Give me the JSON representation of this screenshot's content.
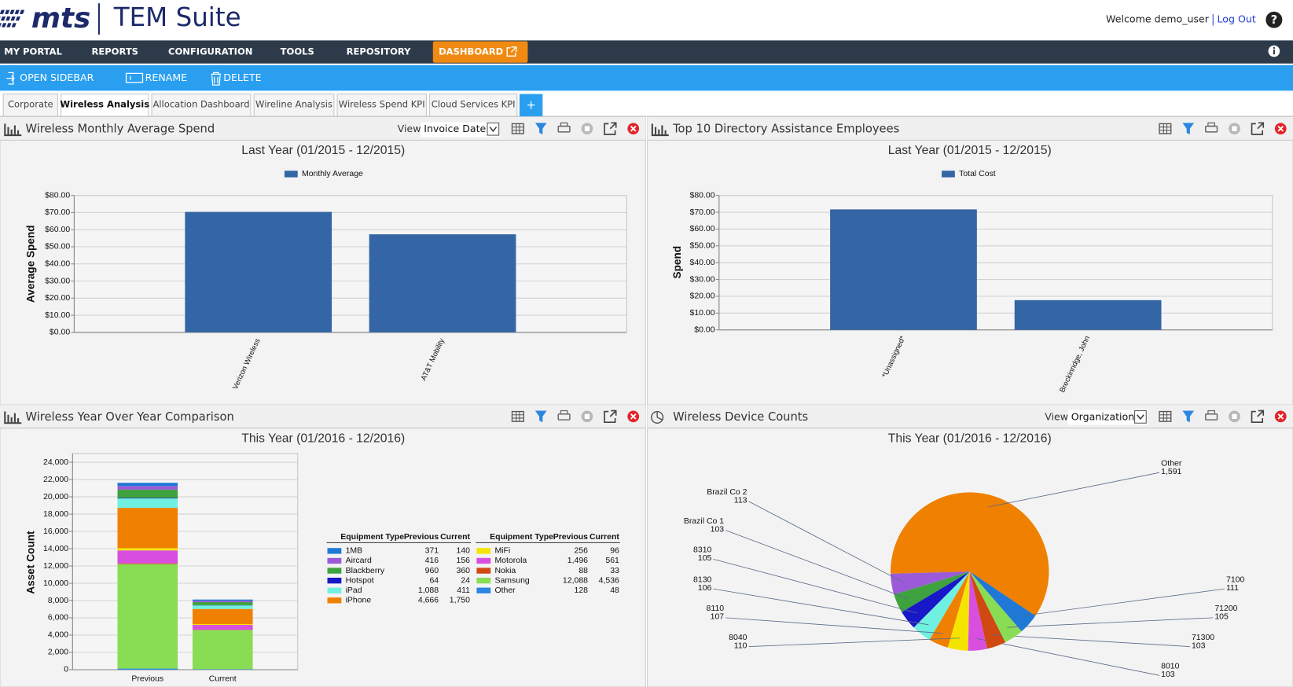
{
  "header": {
    "logo": "mts",
    "app_name": "TEM Suite",
    "welcome": "Welcome demo_user",
    "logout": "Log Out",
    "help": "?"
  },
  "nav": [
    "MY PORTAL",
    "REPORTS",
    "CONFIGURATION",
    "TOOLS",
    "REPOSITORY",
    "DASHBOARD"
  ],
  "toolbar": [
    "OPEN SIDEBAR",
    "RENAME",
    "DELETE"
  ],
  "tabs": [
    "Corporate",
    "Wireless Analysis",
    "Allocation Dashboard",
    "Wireline Analysis",
    "Wireless Spend KPI",
    "Cloud Services KPI"
  ],
  "add_tab": "+",
  "panels": [
    {
      "title": "Wireless Monthly Average Spend",
      "view_label": "View:",
      "view_value": "Invoice Date"
    },
    {
      "title": "Top 10 Directory Assistance Employees"
    },
    {
      "title": "Wireless Year Over Year Comparison"
    },
    {
      "title": "Wireless Device Counts",
      "view_label": "View:",
      "view_value": "Organization"
    }
  ],
  "chart_data": [
    {
      "type": "bar",
      "title": "Last Year (01/2015 - 12/2015)",
      "ylabel": "Average Spend",
      "categories": [
        "Verizon Wireless",
        "AT&T Mobility"
      ],
      "series": [
        {
          "name": "Monthly Average",
          "color": "#3465a4",
          "values": [
            70.4,
            57.3
          ]
        }
      ],
      "ylim": [
        0,
        80
      ],
      "yticks": [
        {
          "value": 0,
          "label": "$0.00"
        },
        {
          "value": 10,
          "label": "$10.00"
        },
        {
          "value": 20,
          "label": "$20.00"
        },
        {
          "value": 30,
          "label": "$30.00"
        },
        {
          "value": 40,
          "label": "$40.00"
        },
        {
          "value": 50,
          "label": "$50.00"
        },
        {
          "value": 60,
          "label": "$60.00"
        },
        {
          "value": 70,
          "label": "$70.00"
        },
        {
          "value": 80,
          "label": "$80.00"
        }
      ],
      "grid": true
    },
    {
      "type": "bar",
      "title": "Last Year (01/2015 - 12/2015)",
      "ylabel": "Spend",
      "categories": [
        "*Unassigned*",
        "Breckinridge, John"
      ],
      "series": [
        {
          "name": "Total Cost",
          "color": "#3465a4",
          "values": [
            71.7,
            17.7
          ]
        }
      ],
      "ylim": [
        0,
        80
      ],
      "yticks": [
        {
          "value": 0,
          "label": "$0.00"
        },
        {
          "value": 10,
          "label": "$10.00"
        },
        {
          "value": 20,
          "label": "$20.00"
        },
        {
          "value": 30,
          "label": "$30.00"
        },
        {
          "value": 40,
          "label": "$40.00"
        },
        {
          "value": 50,
          "label": "$50.00"
        },
        {
          "value": 60,
          "label": "$60.00"
        },
        {
          "value": 70,
          "label": "$70.00"
        },
        {
          "value": 80,
          "label": "$80.00"
        }
      ],
      "grid": true
    },
    {
      "type": "stacked_bar",
      "title": "This Year (01/2016 - 12/2016)",
      "ylabel": "Asset Count",
      "categories": [
        "Previous",
        "Current"
      ],
      "legend_columns": [
        "Equipment Type",
        "Previous",
        "Current"
      ],
      "series": [
        {
          "name": "1MB",
          "color": "#1f78d6",
          "values": [
            371,
            140
          ]
        },
        {
          "name": "Aircard",
          "color": "#9b5bd8",
          "values": [
            416,
            156
          ]
        },
        {
          "name": "Blackberry",
          "color": "#3ea33e",
          "values": [
            960,
            360
          ]
        },
        {
          "name": "Hotspot",
          "color": "#1818c8",
          "values": [
            64,
            24
          ]
        },
        {
          "name": "iPad",
          "color": "#70f0e0",
          "values": [
            1088,
            411
          ],
          "value_labels": [
            "1,088",
            "411"
          ]
        },
        {
          "name": "iPhone",
          "color": "#f08000",
          "values": [
            4666,
            1750
          ],
          "value_labels": [
            "4,666",
            "1,750"
          ]
        },
        {
          "name": "MiFi",
          "color": "#f5e400",
          "values": [
            256,
            96
          ]
        },
        {
          "name": "Motorola",
          "color": "#d84fe0",
          "values": [
            1496,
            561
          ],
          "value_labels": [
            "1,496",
            "561"
          ]
        },
        {
          "name": "Nokia",
          "color": "#d04812",
          "values": [
            88,
            33
          ]
        },
        {
          "name": "Samsung",
          "color": "#88dd55",
          "values": [
            12088,
            4536
          ],
          "value_labels": [
            "12,088",
            "4,536"
          ]
        },
        {
          "name": "Other",
          "color": "#2a86e0",
          "values": [
            128,
            48
          ]
        }
      ],
      "ylim": [
        0,
        25000
      ],
      "yticks": [
        0,
        {
          "value": 2000,
          "label": "2,000"
        },
        {
          "value": 4000,
          "label": "4,000"
        },
        {
          "value": 6000,
          "label": "6,000"
        },
        {
          "value": 8000,
          "label": "8,000"
        },
        {
          "value": 10000,
          "label": "10,000"
        },
        {
          "value": 12000,
          "label": "12,000"
        },
        {
          "value": 14000,
          "label": "14,000"
        },
        {
          "value": 16000,
          "label": "16,000"
        },
        {
          "value": 18000,
          "label": "18,000"
        },
        {
          "value": 20000,
          "label": "20,000"
        },
        {
          "value": 22000,
          "label": "22,000"
        },
        {
          "value": 24000,
          "label": "24,000"
        }
      ],
      "grid": true
    },
    {
      "type": "pie",
      "title": "This Year (01/2016 - 12/2016)",
      "categories": [
        "Other",
        "Brazil Co 2",
        "Brazil Co 1",
        "8310",
        "8130",
        "8110",
        "8040",
        "8010",
        "71300",
        "71200",
        "7100"
      ],
      "values": [
        1591,
        113,
        103,
        105,
        106,
        107,
        110,
        103,
        103,
        105,
        111
      ],
      "value_labels": [
        "1,591",
        "113",
        "103",
        "105",
        "106",
        "107",
        "110",
        "103",
        "103",
        "105",
        "111"
      ],
      "colors": [
        "#ef8000",
        "#9b5bd8",
        "#3ea33e",
        "#1818c8",
        "#70f0e0",
        "#f08000",
        "#f5e400",
        "#d84fe0",
        "#d04812",
        "#88dd55",
        "#1f78d6"
      ]
    }
  ]
}
